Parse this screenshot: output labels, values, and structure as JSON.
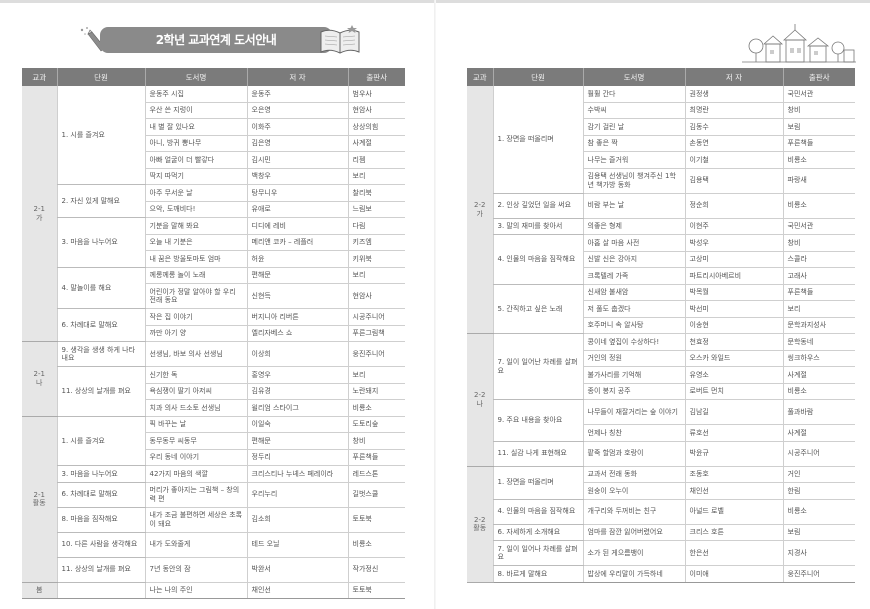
{
  "title": "2학년 교과연계 도서안내",
  "headers": [
    "교과",
    "단원",
    "도서명",
    "저 자",
    "출판사"
  ],
  "colors": {
    "header_bg": "#7b7b7b",
    "subject_bg": "#e6e6e6",
    "banner_bg": "#8a8a8a"
  },
  "icons": [
    "pencil-icon",
    "open-book-icon",
    "town-illustration"
  ],
  "left": [
    {
      "subject": "2-1\n가",
      "units": [
        {
          "name": "1. 시를 즐겨요",
          "books": [
            [
              "윤동주 시집",
              "윤동주",
              "범우사"
            ],
            [
              "우산 쓴 지렁이",
              "오은영",
              "현암사"
            ],
            [
              "내 별 잘 있나요",
              "이화주",
              "상상의힘"
            ],
            [
              "아니, 방귀 뽕나무",
              "김은영",
              "사계절"
            ],
            [
              "아빠 얼굴이 더 빨갛다",
              "김시민",
              "리젬"
            ],
            [
              "딱지 따먹기",
              "백창우",
              "보리"
            ]
          ]
        },
        {
          "name": "2. 자신 있게 말해요",
          "books": [
            [
              "아주 무서운 날",
              "탕무니우",
              "찰리북"
            ],
            [
              "으악, 도깨비다!",
              "유애로",
              "느림보"
            ]
          ]
        },
        {
          "name": "3. 마음을 나누어요",
          "books": [
            [
              "기분을 말해 봐요",
              "디디에 레비",
              "다림"
            ],
            [
              "오늘 내 기분은",
              "메리앤 코카 – 레플러",
              "키즈엠"
            ],
            [
              "내 꿈은 방울토마토 엄마",
              "허윤",
              "키위북"
            ]
          ]
        },
        {
          "name": "4. 말놀이를 해요",
          "books": [
            [
              "께롱께롱 놀이 노래",
              "편해문",
              "보리"
            ],
            [
              "어린이가 정말 알아야 할 우리 전래 동요",
              "신현득",
              "현암사"
            ]
          ]
        },
        {
          "name": "6. 차례대로 말해요",
          "books": [
            [
              "작은 집 이야기",
              "버지니아 리버튼",
              "시공주니어"
            ],
            [
              "까만 아기 양",
              "엘리자베스 쇼",
              "푸른그림책"
            ]
          ]
        }
      ]
    },
    {
      "subject": "2-1\n나",
      "units": [
        {
          "name": "9. 생각을 생생 하게 나타내요",
          "books": [
            [
              "선생님, 바보 의사 선생님",
              "이상희",
              "웅진주니어"
            ]
          ]
        },
        {
          "name": "11. 상상의 날개를 펴요",
          "books": [
            [
              "신기한 독",
              "홍영우",
              "보리"
            ],
            [
              "욕심쟁이 딸기 아저씨",
              "김유경",
              "노란돼지"
            ],
            [
              "치과 의사 드소토 선생님",
              "윌리엄 스타이그",
              "비룡소"
            ]
          ]
        }
      ]
    },
    {
      "subject": "2-1\n활동",
      "units": [
        {
          "name": "1. 시를 즐겨요",
          "books": [
            [
              "픽 바꾸는 날",
              "이일숙",
              "도토리숲"
            ],
            [
              "동무동무 씨동무",
              "편해문",
              "창비"
            ],
            [
              "우리 동네 이야기",
              "정두리",
              "푸른책들"
            ]
          ]
        },
        {
          "name": "3. 마음을 나누어요",
          "books": [
            [
              "42가지 마음의 색깔",
              "크리스티나 누녜스 페레이라",
              "레드스톤"
            ]
          ]
        },
        {
          "name": "6. 차례대로 말해요",
          "books": [
            [
              "머리가 좋아지는 그림책 – 창의력 편",
              "우리누리",
              "길벗스쿨"
            ]
          ]
        },
        {
          "name": "8. 마음을 짐작해요",
          "books": [
            [
              "내가 조금 불편하면 세상은 초록이 돼요",
              "김소희",
              "토토북"
            ]
          ]
        },
        {
          "name": "10. 다른 사람을 생각해요",
          "books": [
            [
              "내가 도와줄게",
              "테드 오닐",
              "비룡소"
            ]
          ]
        },
        {
          "name": "11. 상상의 날개를 펴요",
          "books": [
            [
              "7년 동안의 잠",
              "박완서",
              "작가정신"
            ]
          ]
        }
      ]
    },
    {
      "subject": "봄",
      "units": [
        {
          "name": "",
          "books": [
            [
              "나는 나의 주인",
              "채인선",
              "토토북"
            ]
          ]
        }
      ]
    }
  ],
  "right": [
    {
      "subject": "2-2\n가",
      "units": [
        {
          "name": "1. 장면을 떠올리며",
          "books": [
            [
              "훨훨 간다",
              "권정생",
              "국민서관"
            ],
            [
              "수박씨",
              "최명란",
              "창비"
            ],
            [
              "감기 걸린 날",
              "김동수",
              "보림"
            ],
            [
              "참 좋은 짝",
              "손동연",
              "푸른책들"
            ],
            [
              "나무는 즐거워",
              "이기철",
              "비룡소"
            ],
            [
              "김용택 선생님이 챙겨주신 1학년 책가방 동화",
              "김용택",
              "파랑새"
            ]
          ]
        },
        {
          "name": "2. 인상 깊었던 일을 써요",
          "books": [
            [
              "비람 부는 날",
              "정순희",
              "비룡소"
            ]
          ]
        },
        {
          "name": "3. 말의 재미를 찾아서",
          "books": [
            [
              "의좋은 형제",
              "이현주",
              "국민서관"
            ]
          ]
        },
        {
          "name": "4. 인물의 마음을 짐작해요",
          "books": [
            [
              "아홉 살 마음 사전",
              "박성우",
              "창비"
            ],
            [
              "신발 신은 강아지",
              "고상미",
              "스콜라"
            ],
            [
              "크록텔레 가족",
              "파트리시아베르비",
              "고래사"
            ]
          ]
        },
        {
          "name": "5. 간직하고 싶은 노래",
          "books": [
            [
              "신새암 불새암",
              "박목월",
              "푸른책들"
            ],
            [
              "저 풀도 춥겠다",
              "박선미",
              "보리"
            ],
            [
              "호주머니 속 알사탕",
              "이송현",
              "문학과지성사"
            ]
          ]
        }
      ]
    },
    {
      "subject": "2-2\n나",
      "units": [
        {
          "name": "7. 일이 일어난 차례를 살펴요",
          "books": [
            [
              "콩이네 옆집이 수상하다!",
              "천효정",
              "문학동네"
            ],
            [
              "거인의 정원",
              "오스카 와일드",
              "씽크하우스"
            ],
            [
              "불가사리를 기억해",
              "유영소",
              "사계절"
            ],
            [
              "종이 봉지 공주",
              "로버트 먼치",
              "비룡소"
            ]
          ]
        },
        {
          "name": "9. 주요 내용을 찾아요",
          "books": [
            [
              "나무들이 재잘거리는 숲 이야기",
              "김남길",
              "풀과바람"
            ],
            [
              "언제나 칭찬",
              "류호선",
              "사계절"
            ]
          ]
        },
        {
          "name": "11. 실감 나게 표현해요",
          "books": [
            [
              "팥죽 할멈과 호랑이",
              "박윤규",
              "시공주니어"
            ]
          ]
        }
      ]
    },
    {
      "subject": "2-2\n활동",
      "units": [
        {
          "name": "1. 장면을 떠올리며",
          "books": [
            [
              "교과서 전래 동화",
              "조동호",
              "거인"
            ],
            [
              "원숭이 오누이",
              "채인선",
              "한림"
            ]
          ]
        },
        {
          "name": "4. 인물의 마음을 짐작해요",
          "books": [
            [
              "개구리와 두꺼비는 친구",
              "아널드 로벨",
              "비룡소"
            ]
          ]
        },
        {
          "name": "6. 자세하게 소개해요",
          "books": [
            [
              "엄마를 잠깐 잃어버렸어요",
              "크리스 호튼",
              "보림"
            ]
          ]
        },
        {
          "name": "7. 일이 일어나 차례를 살펴요",
          "books": [
            [
              "소가 된 게으름뱅이",
              "한은선",
              "지경사"
            ]
          ]
        },
        {
          "name": "8. 바르게 말해요",
          "books": [
            [
              "밥상에 우리말이 가득하네",
              "이미애",
              "웅진주니어"
            ]
          ]
        }
      ]
    }
  ]
}
